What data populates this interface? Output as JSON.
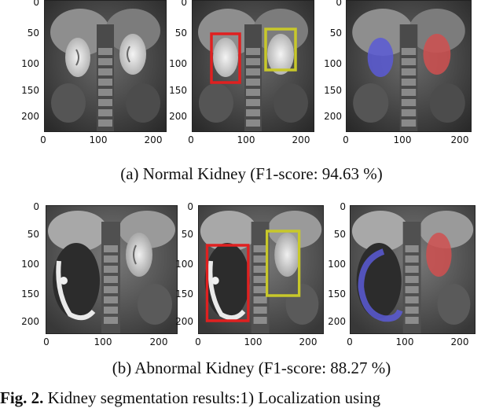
{
  "rows": [
    {
      "caption": "(a) Normal Kidney (F1-score: 94.63 %)",
      "y_ticks": [
        "0",
        "50",
        "100",
        "150",
        "200"
      ],
      "x_ticks": [
        "0",
        "100",
        "200"
      ],
      "box_colors": {
        "left": "#e02020",
        "right": "#c8c82a"
      }
    },
    {
      "caption": "(b) Abnormal Kidney (F1-score: 88.27 %)",
      "y_ticks": [
        "0",
        "50",
        "100",
        "150",
        "200"
      ],
      "x_ticks": [
        "0",
        "100",
        "200"
      ],
      "box_colors": {
        "left": "#e02020",
        "right": "#c8c82a"
      }
    }
  ],
  "overlay_colors": {
    "left_kidney": "#5b5bd6",
    "right_kidney": "#d05050"
  },
  "figure_caption": {
    "label": "Fig. 2.",
    "text": "Kidney segmentation results:1) Localization using"
  }
}
